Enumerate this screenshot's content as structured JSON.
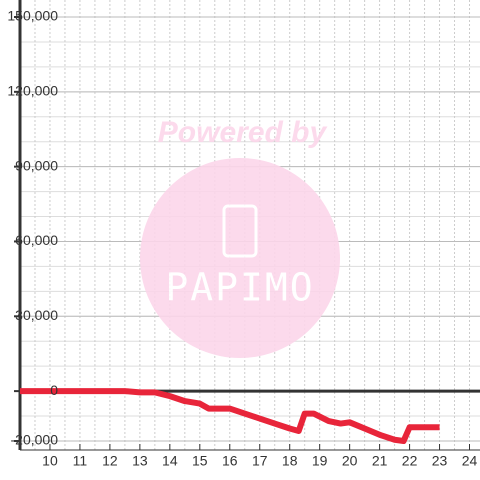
{
  "chart_data": {
    "type": "line",
    "watermark": {
      "title": "Powered by",
      "brand": "PAPIMO"
    },
    "x": [
      9,
      12.5,
      13,
      13.5,
      14,
      14.5,
      15,
      15.3,
      16,
      16.5,
      17,
      17.5,
      18,
      18.3,
      18.5,
      18.8,
      19.3,
      19.7,
      20,
      20.5,
      21,
      21.5,
      21.8,
      22,
      23
    ],
    "values": [
      0,
      0,
      -500,
      -500,
      -2000,
      -4000,
      -5000,
      -7000,
      -7000,
      -9000,
      -11000,
      -13000,
      -15000,
      -16000,
      -9000,
      -9000,
      -12000,
      -13000,
      -12500,
      -15000,
      -17500,
      -19500,
      -20000,
      -14500,
      -14500
    ],
    "color": "#e8253a",
    "xlim": [
      9,
      24.35
    ],
    "xticks": [
      10,
      11,
      12,
      13,
      14,
      15,
      16,
      17,
      18,
      19,
      20,
      21,
      22,
      23,
      24
    ],
    "ylim": [
      -20000,
      150000
    ],
    "yticks": [
      {
        "value": -20000,
        "label": "-20,000"
      },
      0,
      {
        "value": 30000,
        "label": "30,000"
      },
      {
        "value": 60000,
        "label": "60,000"
      },
      {
        "value": 90000,
        "label": "90,000"
      },
      {
        "value": 120000,
        "label": "120,000"
      },
      {
        "value": 150000,
        "label": "150,000"
      }
    ],
    "grid": true
  }
}
